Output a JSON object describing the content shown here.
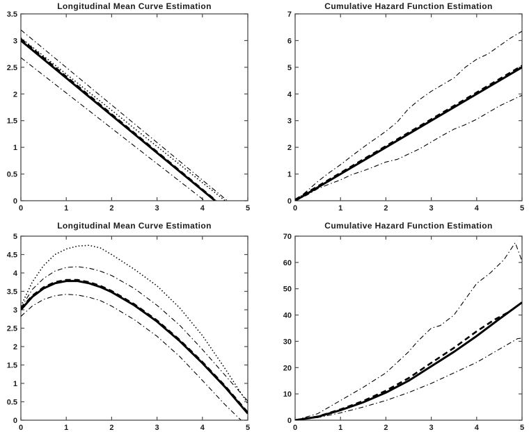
{
  "figure": {
    "background": "#ffffff",
    "axis_color": "#4a4a4a",
    "line_color": "#000000",
    "label_color": "#1c1c1c"
  },
  "chart_data": [
    {
      "position": "top-left",
      "type": "line",
      "title": "Longitudinal Mean Curve Estimation",
      "xlabel": "",
      "ylabel": "",
      "xlim": [
        0,
        5
      ],
      "ylim": [
        0,
        3.5
      ],
      "xticks": [
        0,
        1,
        2,
        3,
        4,
        5
      ],
      "yticks": [
        0,
        0.5,
        1,
        1.5,
        2,
        2.5,
        3,
        3.5
      ],
      "grid": false,
      "legend": null,
      "series": [
        {
          "name": "lower-confidence-band",
          "style": "dashdot",
          "x": [
            0,
            4.05
          ],
          "y": [
            2.68,
            0
          ]
        },
        {
          "name": "upper-confidence-band",
          "style": "dashdot",
          "x": [
            0,
            4.55
          ],
          "y": [
            3.2,
            0
          ]
        },
        {
          "name": "dotted-curve",
          "style": "dotted",
          "x": [
            0,
            4.5
          ],
          "y": [
            3.05,
            0
          ]
        },
        {
          "name": "estimated-mean-curve",
          "style": "solid",
          "x": [
            0,
            4.28
          ],
          "y": [
            3.0,
            0
          ]
        },
        {
          "name": "true-mean-curve",
          "style": "dashed",
          "x": [
            0,
            4.3
          ],
          "y": [
            3.03,
            0
          ]
        }
      ]
    },
    {
      "position": "top-right",
      "type": "line",
      "title": "Cumulative Hazard Function Estimation",
      "xlabel": "",
      "ylabel": "",
      "xlim": [
        0,
        5
      ],
      "ylim": [
        0,
        7
      ],
      "xticks": [
        0,
        1,
        2,
        3,
        4,
        5
      ],
      "yticks": [
        0,
        1,
        2,
        3,
        4,
        5,
        6,
        7
      ],
      "grid": false,
      "legend": null,
      "series": [
        {
          "name": "lower-confidence-band",
          "style": "dashdot",
          "x": [
            0,
            0.25,
            0.5,
            0.75,
            1,
            1.25,
            1.5,
            1.75,
            2,
            2.25,
            2.5,
            2.75,
            3,
            3.25,
            3.5,
            3.75,
            4,
            4.25,
            4.5,
            4.75,
            5
          ],
          "y": [
            0,
            0.2,
            0.45,
            0.62,
            0.78,
            0.98,
            1.12,
            1.28,
            1.45,
            1.55,
            1.75,
            1.95,
            2.2,
            2.45,
            2.68,
            2.85,
            3.05,
            3.3,
            3.55,
            3.75,
            3.95
          ]
        },
        {
          "name": "upper-confidence-band",
          "style": "dashdot",
          "x": [
            0,
            0.25,
            0.5,
            0.75,
            1,
            1.25,
            1.5,
            1.75,
            2,
            2.25,
            2.5,
            2.75,
            3,
            3.25,
            3.5,
            3.75,
            4,
            4.25,
            4.5,
            4.75,
            5
          ],
          "y": [
            0,
            0.35,
            0.72,
            1.05,
            1.35,
            1.68,
            2.0,
            2.3,
            2.6,
            2.95,
            3.45,
            3.8,
            4.1,
            4.35,
            4.6,
            5.0,
            5.3,
            5.5,
            5.8,
            6.1,
            6.35
          ]
        },
        {
          "name": "estimated-cumulative-hazard",
          "style": "solid",
          "x": [
            0,
            5
          ],
          "y": [
            0,
            5
          ]
        },
        {
          "name": "true-cumulative-hazard",
          "style": "dashed",
          "x": [
            0,
            5
          ],
          "y": [
            0.04,
            5.06
          ]
        }
      ]
    },
    {
      "position": "bottom-left",
      "type": "line",
      "title": "Longitudinal Mean Curve Estimation",
      "xlabel": "",
      "ylabel": "",
      "xlim": [
        0,
        5
      ],
      "ylim": [
        0,
        5
      ],
      "xticks": [
        0,
        1,
        2,
        3,
        4,
        5
      ],
      "yticks": [
        0,
        0.5,
        1,
        1.5,
        2,
        2.5,
        3,
        3.5,
        4,
        4.5,
        5
      ],
      "grid": false,
      "legend": null,
      "series": [
        {
          "name": "lower-confidence-band",
          "style": "dashdot",
          "x": [
            0,
            0.25,
            0.5,
            0.75,
            1,
            1.25,
            1.5,
            1.75,
            2,
            2.5,
            3,
            3.5,
            4,
            4.5,
            4.85
          ],
          "y": [
            2.82,
            3.1,
            3.28,
            3.38,
            3.42,
            3.4,
            3.34,
            3.25,
            3.1,
            2.73,
            2.28,
            1.73,
            1.08,
            0.42,
            0
          ]
        },
        {
          "name": "upper-confidence-band",
          "style": "dashdot",
          "x": [
            0,
            0.25,
            0.5,
            0.75,
            1,
            1.25,
            1.5,
            1.75,
            2,
            2.5,
            3,
            3.5,
            4,
            4.5,
            5
          ],
          "y": [
            3.05,
            3.55,
            3.85,
            4.05,
            4.15,
            4.17,
            4.13,
            4.05,
            3.93,
            3.58,
            3.12,
            2.58,
            1.92,
            1.22,
            0.52
          ]
        },
        {
          "name": "dotted-curve",
          "style": "dotted",
          "x": [
            0,
            0.25,
            0.5,
            0.75,
            1,
            1.25,
            1.5,
            1.75,
            2,
            2.5,
            3,
            3.5,
            4,
            4.5,
            5
          ],
          "y": [
            3.1,
            3.75,
            4.2,
            4.5,
            4.65,
            4.73,
            4.75,
            4.68,
            4.5,
            4.1,
            3.65,
            3.05,
            2.3,
            1.4,
            0.45
          ]
        },
        {
          "name": "estimated-mean-curve",
          "style": "solid",
          "x": [
            0,
            0.25,
            0.5,
            0.75,
            1,
            1.25,
            1.5,
            1.75,
            2,
            2.5,
            3,
            3.5,
            4,
            4.5,
            5
          ],
          "y": [
            3.0,
            3.35,
            3.58,
            3.72,
            3.78,
            3.78,
            3.72,
            3.62,
            3.48,
            3.12,
            2.68,
            2.15,
            1.55,
            0.9,
            0.18
          ]
        },
        {
          "name": "true-mean-curve",
          "style": "dashed",
          "x": [
            0,
            0.25,
            0.5,
            0.75,
            1,
            1.25,
            1.5,
            1.75,
            2,
            2.5,
            3,
            3.5,
            4,
            4.5,
            5
          ],
          "y": [
            3.03,
            3.38,
            3.61,
            3.75,
            3.81,
            3.81,
            3.75,
            3.65,
            3.51,
            3.15,
            2.71,
            2.18,
            1.58,
            0.93,
            0.21
          ]
        }
      ]
    },
    {
      "position": "bottom-right",
      "type": "line",
      "title": "Cumulative Hazard Function Estimation",
      "xlabel": "",
      "ylabel": "",
      "xlim": [
        0,
        5
      ],
      "ylim": [
        0,
        70
      ],
      "xticks": [
        0,
        1,
        2,
        3,
        4,
        5
      ],
      "yticks": [
        0,
        10,
        20,
        30,
        40,
        50,
        60,
        70
      ],
      "grid": false,
      "legend": null,
      "series": [
        {
          "name": "lower-confidence-band",
          "style": "dashdot",
          "x": [
            0,
            0.5,
            1,
            1.5,
            2,
            2.5,
            3,
            3.5,
            4,
            4.5,
            4.9,
            5
          ],
          "y": [
            0,
            1,
            2.8,
            5,
            7.5,
            10.5,
            14,
            18,
            22,
            27,
            31,
            31.2
          ]
        },
        {
          "name": "upper-confidence-band",
          "style": "dashdot",
          "x": [
            0,
            0.5,
            1,
            1.5,
            2,
            2.5,
            2.7,
            3,
            3.2,
            3.5,
            4,
            4.3,
            4.6,
            4.85,
            5
          ],
          "y": [
            0,
            2.5,
            7.5,
            12.5,
            18,
            26,
            30,
            35,
            36,
            40,
            52,
            56,
            61,
            67.5,
            60.5
          ]
        },
        {
          "name": "estimated-cumulative-hazard",
          "style": "solid",
          "x": [
            0,
            0.5,
            1,
            1.5,
            2,
            2.5,
            3,
            3.5,
            4,
            4.5,
            5
          ],
          "y": [
            0,
            1.3,
            3.8,
            6.8,
            10.5,
            15,
            20.5,
            26,
            32,
            38.5,
            44.8
          ]
        },
        {
          "name": "true-cumulative-hazard",
          "style": "dashed",
          "x": [
            0,
            0.5,
            1,
            1.5,
            2,
            2.5,
            3,
            3.5,
            4,
            4.4,
            4.75
          ],
          "y": [
            0,
            1.4,
            4.1,
            7.3,
            11.2,
            16,
            21.8,
            27.5,
            33.8,
            38.3,
            41.5
          ]
        }
      ]
    }
  ]
}
